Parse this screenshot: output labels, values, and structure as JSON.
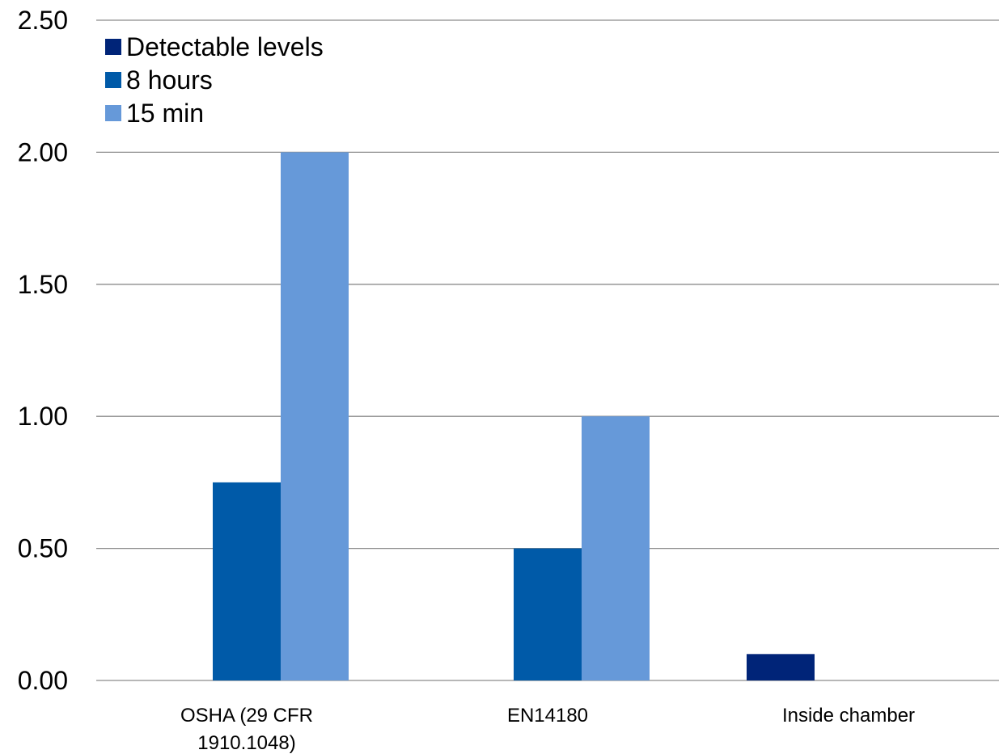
{
  "chart_data": {
    "type": "bar",
    "categories": [
      [
        "OSHA (29 CFR",
        "1910.1048)"
      ],
      [
        "EN14180"
      ],
      [
        "Inside chamber"
      ]
    ],
    "series": [
      {
        "name": "Detectable levels",
        "color": "#002478",
        "values": [
          null,
          null,
          0.1
        ]
      },
      {
        "name": "8 hours",
        "color": "#005aa8",
        "values": [
          0.75,
          0.5,
          null
        ]
      },
      {
        "name": "15 min",
        "color": "#6699d9",
        "values": [
          2.0,
          1.0,
          null
        ]
      }
    ],
    "ylim": [
      0,
      2.5
    ],
    "yticks": [
      "0.00",
      "0.50",
      "1.00",
      "1.50",
      "2.00",
      "2.50"
    ],
    "grid": true,
    "legend_position": "top-left"
  }
}
